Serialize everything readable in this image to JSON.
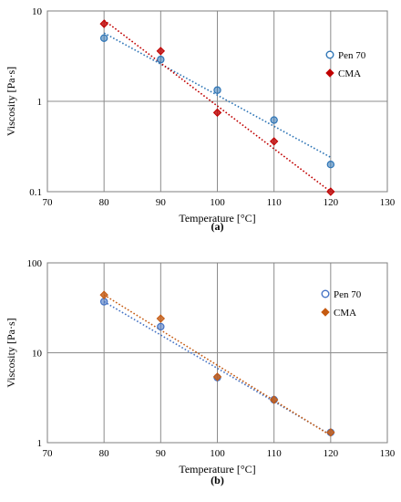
{
  "chart_data": [
    {
      "type": "scatter",
      "panel_label": "(a)",
      "xlabel": "Temperature [°C]",
      "ylabel": "Viscosity [Pa·s]",
      "x_ticks": [
        "70",
        "80",
        "90",
        "100",
        "110",
        "120",
        "130"
      ],
      "y_ticks": [
        "0.1",
        "1",
        "10"
      ],
      "xlim": [
        70,
        130
      ],
      "ylim": [
        0.1,
        10
      ],
      "y_scale": "log",
      "grid": "vertical",
      "legend_position": "right",
      "series": [
        {
          "name": "Pen 70",
          "marker": "circle",
          "color": "#2e75b6",
          "points": [
            [
              80,
              5.0
            ],
            [
              90,
              2.9
            ],
            [
              100,
              1.33
            ],
            [
              110,
              0.62
            ],
            [
              120,
              0.2
            ]
          ],
          "trend": [
            [
              80,
              5.7
            ],
            [
              120,
              0.24
            ]
          ]
        },
        {
          "name": "CMA",
          "marker": "diamond",
          "color": "#c00000",
          "points": [
            [
              80,
              7.2
            ],
            [
              90,
              3.6
            ],
            [
              100,
              0.75
            ],
            [
              110,
              0.36
            ],
            [
              120,
              0.1
            ]
          ],
          "trend": [
            [
              80,
              7.9
            ],
            [
              120,
              0.1
            ]
          ]
        }
      ]
    },
    {
      "type": "scatter",
      "panel_label": "(b)",
      "xlabel": "Temperature [°C]",
      "ylabel": "Viscosity [Pa·s]",
      "x_ticks": [
        "70",
        "80",
        "90",
        "100",
        "110",
        "120",
        "130"
      ],
      "y_ticks": [
        "1",
        "10",
        "100"
      ],
      "xlim": [
        70,
        130
      ],
      "ylim": [
        1,
        100
      ],
      "y_scale": "log",
      "grid": "vertical",
      "legend_position": "right",
      "series": [
        {
          "name": "Pen 70",
          "marker": "circle",
          "color": "#4472c4",
          "points": [
            [
              80,
              37
            ],
            [
              90,
              19.5
            ],
            [
              100,
              5.3
            ],
            [
              110,
              3.0
            ],
            [
              120,
              1.3
            ]
          ],
          "trend": [
            [
              80,
              37
            ],
            [
              120,
              1.22
            ]
          ]
        },
        {
          "name": "CMA",
          "marker": "diamond",
          "color": "#c55a11",
          "points": [
            [
              80,
              44
            ],
            [
              90,
              24
            ],
            [
              100,
              5.4
            ],
            [
              110,
              3.0
            ],
            [
              120,
              1.3
            ]
          ],
          "trend": [
            [
              80,
              44
            ],
            [
              120,
              1.2
            ]
          ]
        }
      ]
    }
  ]
}
